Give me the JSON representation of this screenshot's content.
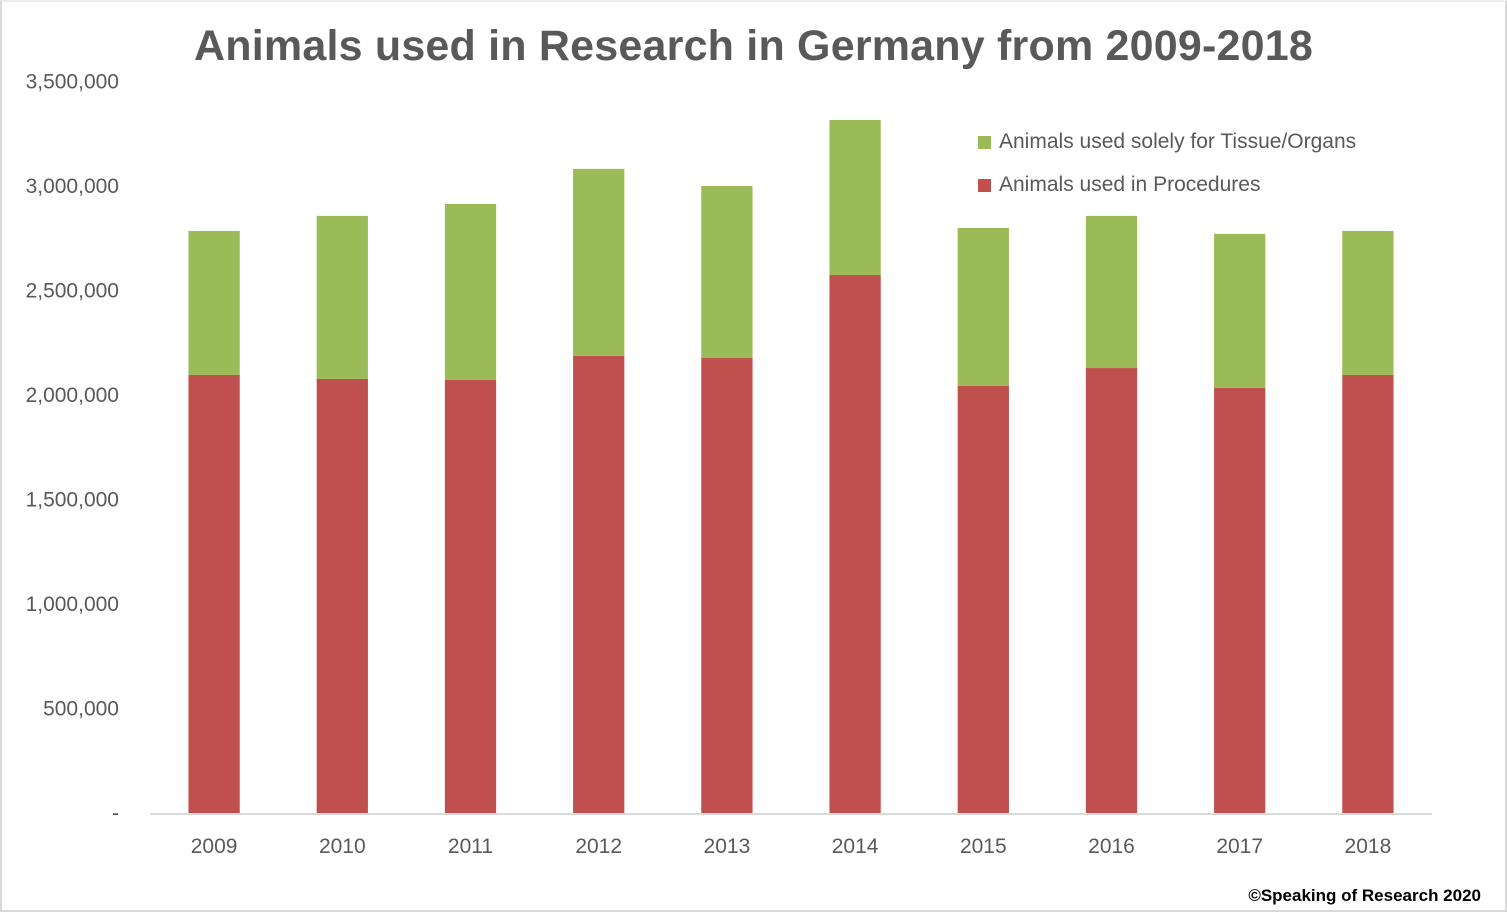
{
  "chart_data": {
    "type": "bar",
    "stacked": true,
    "title": "Animals used in Research in Germany from 2009-2018",
    "xlabel": "",
    "ylabel": "",
    "categories": [
      "2009",
      "2010",
      "2011",
      "2012",
      "2013",
      "2014",
      "2015",
      "2016",
      "2017",
      "2018"
    ],
    "series": [
      {
        "name": "Animals used in Procedures",
        "color": "#C0504D",
        "values": [
          2096000,
          2077000,
          2072000,
          2187000,
          2177000,
          2574000,
          2043000,
          2129000,
          2034000,
          2096000
        ]
      },
      {
        "name": "Animals used solely for Tissue/Organs",
        "color": "#9BBB59",
        "values": [
          689000,
          780000,
          842000,
          895000,
          823000,
          742000,
          756000,
          728000,
          737000,
          689000
        ]
      }
    ],
    "ylim": [
      0,
      3500000
    ],
    "yticks": [
      0,
      500000,
      1000000,
      1500000,
      2000000,
      2500000,
      3000000,
      3500000
    ],
    "ytick_labels": [
      "-",
      "500,000",
      "1,000,000",
      "1,500,000",
      "2,000,000",
      "2,500,000",
      "3,000,000",
      "3,500,000"
    ],
    "grid": false,
    "legend": {
      "position": "top-right",
      "order": [
        "Animals used solely for Tissue/Organs",
        "Animals used in Procedures"
      ]
    }
  },
  "legend_items": [
    {
      "label": "Animals used solely for Tissue/Organs",
      "color": "#9BBB59"
    },
    {
      "label": "Animals used in Procedures",
      "color": "#C0504D"
    }
  ],
  "footer": "©Speaking of Research 2020"
}
